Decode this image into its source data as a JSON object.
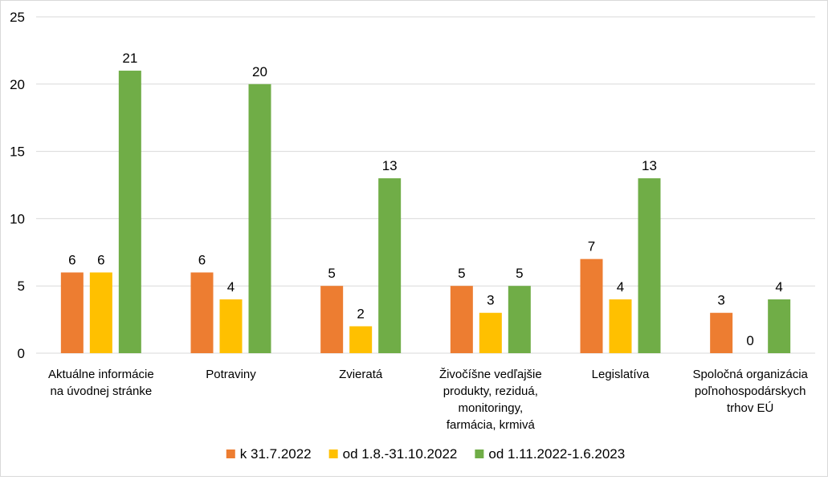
{
  "chart_data": {
    "type": "bar",
    "categories": [
      [
        "Aktuálne informácie",
        "na úvodnej stránke"
      ],
      [
        "Potraviny"
      ],
      [
        "Zvieratá"
      ],
      [
        "Živočíšne vedľajšie",
        "produkty, reziduá,",
        "monitoringy,",
        "farmácia, krmivá"
      ],
      [
        "Legislatíva"
      ],
      [
        "Spoločná organizácia",
        "poľnohospodárskych",
        "trhov EÚ"
      ]
    ],
    "series": [
      {
        "name": "k 31.7.2022",
        "color": "#ED7D31",
        "values": [
          6,
          6,
          5,
          5,
          7,
          3
        ]
      },
      {
        "name": "od 1.8.-31.10.2022",
        "color": "#FFC000",
        "values": [
          6,
          4,
          2,
          3,
          4,
          0
        ]
      },
      {
        "name": "od 1.11.2022-1.6.2023",
        "color": "#70AD47",
        "values": [
          21,
          20,
          13,
          5,
          13,
          4
        ]
      }
    ],
    "ylim": [
      0,
      25
    ],
    "yticks": [
      0,
      5,
      10,
      15,
      20,
      25
    ],
    "grid": true,
    "grid_color": "#d9d9d9",
    "legend_position": "bottom",
    "data_labels": true
  }
}
